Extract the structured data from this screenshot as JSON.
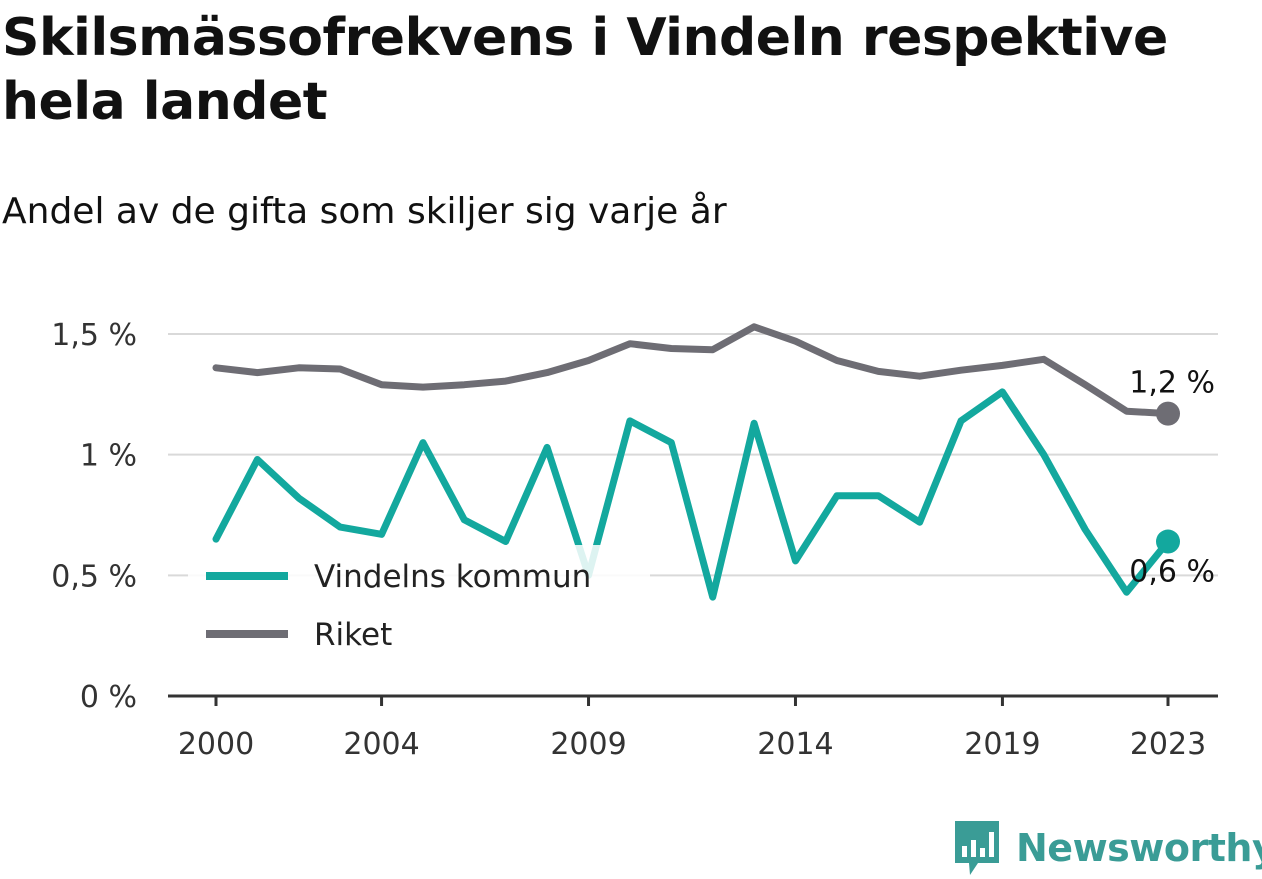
{
  "title": "Skilsmässofrekvens i Vindeln respektive hela landet",
  "subtitle": "Andel av de gifta som skiljer sig varje år",
  "brand": {
    "name": "Newsworthy",
    "icon": "bar-chart-speech-bubble-icon"
  },
  "colors": {
    "vindeln": "#13a89e",
    "riket": "#6e6d74",
    "grid": "#d9d9d9",
    "axis": "#333333"
  },
  "chart_data": {
    "type": "line",
    "ylim": [
      0,
      1.5
    ],
    "y_ticks": [
      {
        "value": 0,
        "label": "0 %"
      },
      {
        "value": 0.5,
        "label": "0,5 %"
      },
      {
        "value": 1,
        "label": "1 %"
      },
      {
        "value": 1.5,
        "label": "1,5 %"
      }
    ],
    "x_ticks": [
      2000,
      2004,
      2009,
      2014,
      2019,
      2023
    ],
    "grid": true,
    "legend_position": "bottom-left",
    "x": [
      2000,
      2001,
      2002,
      2003,
      2004,
      2005,
      2006,
      2007,
      2008,
      2009,
      2010,
      2011,
      2012,
      2013,
      2014,
      2015,
      2016,
      2017,
      2018,
      2019,
      2020,
      2021,
      2022,
      2023
    ],
    "series": [
      {
        "key": "vindeln",
        "name": "Vindelns kommun",
        "values": [
          0.65,
          0.98,
          0.82,
          0.7,
          0.67,
          1.05,
          0.73,
          0.64,
          1.03,
          0.5,
          1.14,
          1.05,
          0.41,
          1.13,
          0.56,
          0.83,
          0.83,
          0.72,
          1.14,
          1.26,
          1.0,
          0.69,
          0.43,
          0.64
        ],
        "end_label": "0,6 %"
      },
      {
        "key": "riket",
        "name": "Riket",
        "values": [
          1.36,
          1.34,
          1.36,
          1.355,
          1.29,
          1.28,
          1.29,
          1.305,
          1.34,
          1.39,
          1.46,
          1.44,
          1.435,
          1.53,
          1.47,
          1.39,
          1.345,
          1.325,
          1.35,
          1.37,
          1.395,
          1.29,
          1.18,
          1.17
        ],
        "end_label": "1,2 %"
      }
    ]
  }
}
